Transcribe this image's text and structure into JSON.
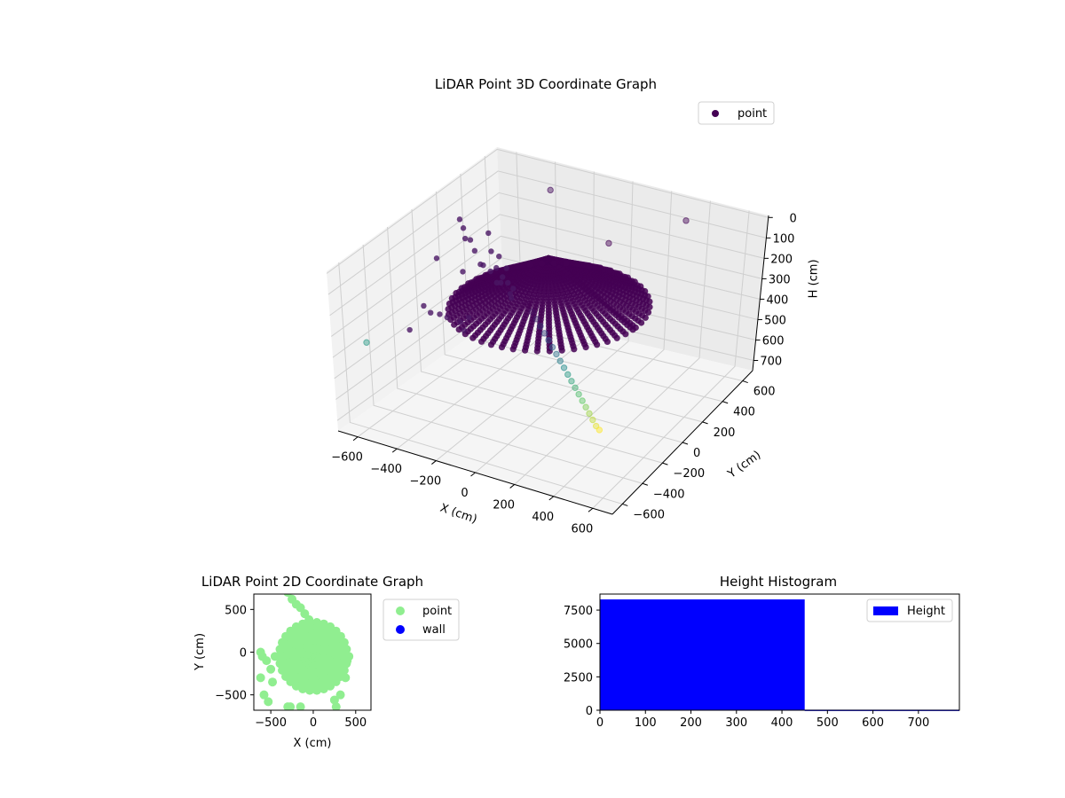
{
  "chart_data": [
    {
      "type": "scatter",
      "projection": "3d",
      "title": "LiDAR Point 3D Coordinate Graph",
      "xlabel": "X (cm)",
      "ylabel": "Y (cm)",
      "zlabel": "H (cm)",
      "xlim": [
        -700,
        700
      ],
      "ylim": [
        -700,
        700
      ],
      "zlim": [
        750,
        -10
      ],
      "xticks": [
        -600,
        -400,
        -200,
        0,
        200,
        400,
        600
      ],
      "yticks": [
        -600,
        -400,
        -200,
        0,
        200,
        400,
        600
      ],
      "zticks": [
        0,
        100,
        200,
        300,
        400,
        500,
        600,
        700
      ],
      "zaxis_inverted": true,
      "grid": true,
      "legend": {
        "location": "upper right",
        "entries": [
          {
            "name": "point",
            "color": "#440154"
          }
        ]
      },
      "colormap": "viridis",
      "series": [
        {
          "name": "point",
          "description": "dense dome of points centered near origin, radius ~450 cm, heights 80-300 cm",
          "dome": {
            "center": [
              0,
              0
            ],
            "radius": 450,
            "h_min": 80,
            "h_max": 300
          },
          "scattered_points": [
            [
              -650,
              300,
              150
            ],
            [
              -600,
              250,
              160
            ],
            [
              -560,
              200,
              180
            ],
            [
              -520,
              180,
              170
            ],
            [
              -480,
              150,
              200
            ],
            [
              -450,
              220,
              140
            ],
            [
              -420,
              100,
              230
            ],
            [
              -400,
              160,
              190
            ],
            [
              -380,
              60,
              210
            ],
            [
              -350,
              120,
              240
            ],
            [
              -330,
              40,
              220
            ],
            [
              -300,
              90,
              260
            ],
            [
              -280,
              10,
              250
            ],
            [
              -260,
              70,
              270
            ],
            [
              -240,
              -20,
              230
            ],
            [
              -220,
              50,
              280
            ],
            [
              -200,
              0,
              300
            ],
            [
              -180,
              -40,
              260
            ],
            [
              -600,
              -100,
              380
            ],
            [
              -650,
              100,
              250
            ],
            [
              -500,
              -200,
              350
            ],
            [
              -420,
              -250,
              320
            ],
            [
              -350,
              -300,
              300
            ],
            [
              -300,
              -200,
              330
            ],
            [
              -250,
              -350,
              280
            ],
            [
              -200,
              -400,
              290
            ],
            [
              -680,
              350,
              420
            ],
            [
              -550,
              -300,
              400
            ],
            [
              -450,
              300,
              280
            ],
            [
              -380,
              250,
              300
            ]
          ]
        },
        {
          "name": "wall",
          "description": "vertical column of points along a wall line",
          "points": [
            [
              300,
              -650,
              0
            ],
            [
              300,
              -620,
              40
            ],
            [
              300,
              -590,
              80
            ],
            [
              300,
              -560,
              120
            ],
            [
              300,
              -530,
              160
            ],
            [
              300,
              -500,
              200
            ],
            [
              300,
              -470,
              240
            ],
            [
              300,
              -440,
              280
            ],
            [
              300,
              -410,
              320
            ],
            [
              300,
              -380,
              360
            ],
            [
              300,
              -350,
              400
            ],
            [
              300,
              -320,
              440
            ],
            [
              300,
              -290,
              480
            ],
            [
              300,
              -260,
              520
            ],
            [
              300,
              -230,
              560
            ],
            [
              300,
              -200,
              600
            ],
            [
              300,
              -170,
              640
            ],
            [
              300,
              -140,
              680
            ],
            [
              300,
              -110,
              720
            ],
            [
              300,
              -80,
              750
            ],
            [
              250,
              100,
              0
            ],
            [
              400,
              500,
              10
            ],
            [
              -300,
              500,
              20
            ],
            [
              -650,
              -500,
              400
            ]
          ]
        }
      ]
    },
    {
      "type": "scatter",
      "title": "LiDAR Point 2D Coordinate Graph",
      "xlabel": "X (cm)",
      "ylabel": "Y (cm)",
      "xlim": [
        -700,
        680
      ],
      "ylim": [
        -680,
        680
      ],
      "xticks": [
        -500,
        0,
        500
      ],
      "yticks": [
        -500,
        0,
        500
      ],
      "aspect": "equal",
      "legend": {
        "location": "outside right",
        "entries": [
          {
            "name": "point",
            "color": "#90ee90"
          },
          {
            "name": "wall",
            "color": "#0000ff"
          }
        ]
      },
      "series": [
        {
          "name": "point",
          "color": "#90ee90",
          "blob": {
            "center": [
              0,
              -50
            ],
            "radius": 430
          },
          "points": [
            [
              -600,
              -50
            ],
            [
              -550,
              -100
            ],
            [
              -620,
              -300
            ],
            [
              -580,
              -500
            ],
            [
              -530,
              -580
            ],
            [
              -500,
              -200
            ],
            [
              -450,
              -50
            ],
            [
              -480,
              -350
            ],
            [
              -620,
              0
            ],
            [
              -150,
              -640
            ],
            [
              -300,
              -640
            ],
            [
              -270,
              -640
            ],
            [
              250,
              -560
            ],
            [
              270,
              -640
            ],
            [
              320,
              -500
            ],
            [
              400,
              -100
            ],
            [
              420,
              -50
            ],
            [
              380,
              -300
            ],
            [
              -300,
              700
            ],
            [
              -250,
              620
            ],
            [
              -200,
              560
            ],
            [
              -100,
              450
            ],
            [
              -50,
              380
            ],
            [
              -150,
              520
            ]
          ]
        },
        {
          "name": "wall",
          "color": "#0000ff",
          "points": []
        }
      ]
    },
    {
      "type": "bar",
      "title": "Height Histogram",
      "xlabel": "",
      "ylabel": "",
      "xlim": [
        0,
        790
      ],
      "ylim": [
        0,
        8700
      ],
      "xticks": [
        0,
        100,
        200,
        300,
        400,
        500,
        600,
        700
      ],
      "yticks": [
        0,
        2500,
        5000,
        7500
      ],
      "color": "#0000ff",
      "legend": {
        "location": "upper right",
        "entries": [
          {
            "name": "Height",
            "color": "#0000ff"
          }
        ]
      },
      "bins": [
        {
          "start": 0,
          "end": 450,
          "count": 8300
        },
        {
          "start": 450,
          "end": 790,
          "count": 40
        }
      ]
    }
  ]
}
